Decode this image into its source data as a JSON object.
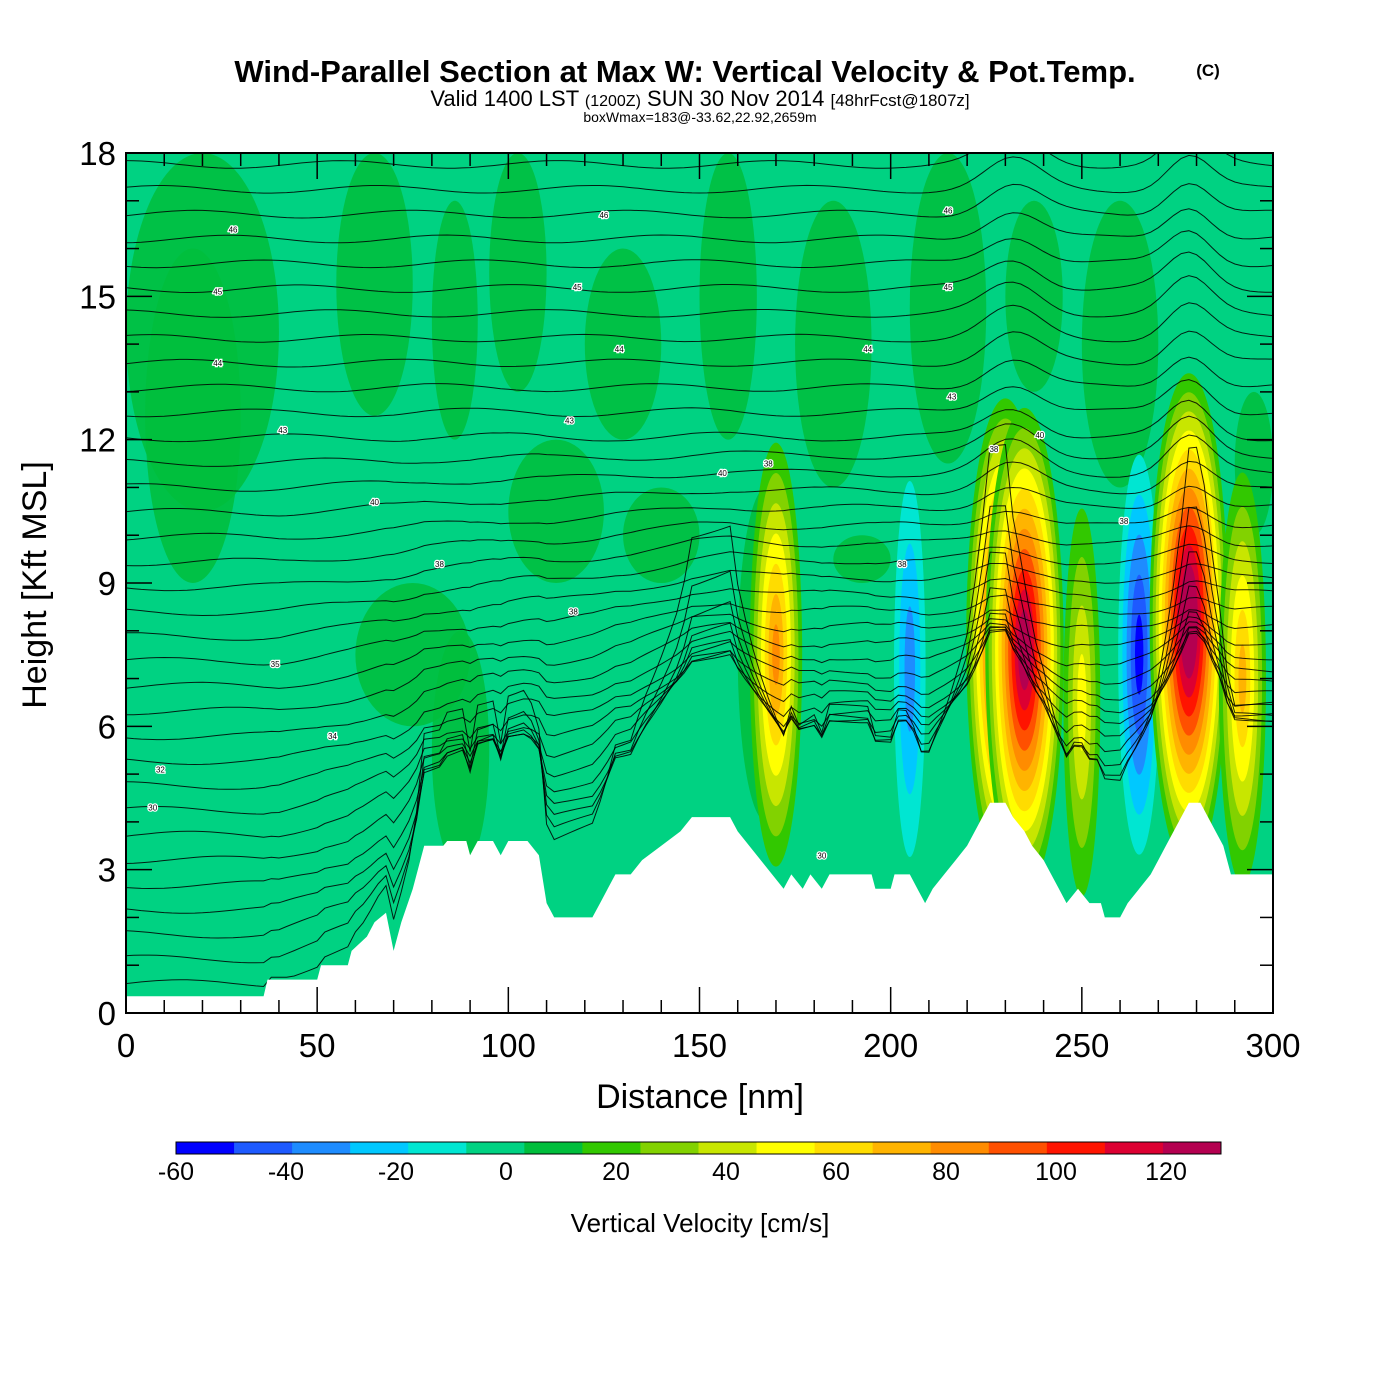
{
  "title": "Wind-Parallel Section at Max W: Vertical Velocity & Pot.Temp.",
  "copyright": "(C)",
  "subtitle": {
    "valid": "Valid 1400 LST",
    "utc": "(1200Z)",
    "date": "SUN 30 Nov 2014",
    "forecast": "[48hrFcst@1807z]"
  },
  "annotation": "boxWmax=183@-33.62,22.92,2659m",
  "colorbar_label": "Vertical Velocity [cm/s]",
  "colors": {
    "scale": [
      "#0000ff",
      "#1e5aff",
      "#1e8cff",
      "#00c8ff",
      "#00e6d2",
      "#00d282",
      "#00be3c",
      "#32c800",
      "#82d200",
      "#c8e600",
      "#ffff00",
      "#ffdc00",
      "#ffb400",
      "#ff8c00",
      "#ff5000",
      "#ff1400",
      "#dc0032",
      "#b40050"
    ]
  },
  "chart_data": {
    "type": "heatmap",
    "x": [
      0,
      50,
      100,
      150,
      200,
      250,
      300
    ],
    "y": [
      0,
      3,
      6,
      9,
      12,
      15,
      18
    ],
    "xlabel": "Distance [nm]",
    "ylabel": "Height [Kft MSL]",
    "xlim": [
      0,
      300
    ],
    "ylim": [
      0,
      18
    ],
    "colorbar": {
      "ticks": [
        -60,
        -40,
        -20,
        0,
        20,
        40,
        60,
        80,
        100,
        120
      ],
      "range": [
        -60,
        130
      ],
      "step": 10
    },
    "contour_labels": [
      {
        "text": "46",
        "x": 28,
        "y": 16.4
      },
      {
        "text": "45",
        "x": 24,
        "y": 15.1
      },
      {
        "text": "44",
        "x": 24,
        "y": 13.6
      },
      {
        "text": "43",
        "x": 41,
        "y": 12.2
      },
      {
        "text": "40",
        "x": 65,
        "y": 10.7
      },
      {
        "text": "38",
        "x": 82,
        "y": 9.4
      },
      {
        "text": "35",
        "x": 39,
        "y": 7.3
      },
      {
        "text": "34",
        "x": 54,
        "y": 5.8
      },
      {
        "text": "32",
        "x": 9,
        "y": 5.1
      },
      {
        "text": "30",
        "x": 7,
        "y": 4.3
      },
      {
        "text": "46",
        "x": 125,
        "y": 16.7
      },
      {
        "text": "45",
        "x": 118,
        "y": 15.2
      },
      {
        "text": "44",
        "x": 129,
        "y": 13.9
      },
      {
        "text": "43",
        "x": 116,
        "y": 12.4
      },
      {
        "text": "40",
        "x": 156,
        "y": 11.3
      },
      {
        "text": "38",
        "x": 117,
        "y": 8.4
      },
      {
        "text": "38",
        "x": 168,
        "y": 11.5
      },
      {
        "text": "46",
        "x": 215,
        "y": 16.8
      },
      {
        "text": "45",
        "x": 215,
        "y": 15.2
      },
      {
        "text": "44",
        "x": 194,
        "y": 13.9
      },
      {
        "text": "43",
        "x": 216,
        "y": 12.9
      },
      {
        "text": "38",
        "x": 203,
        "y": 9.4
      },
      {
        "text": "38",
        "x": 227,
        "y": 11.8
      },
      {
        "text": "40",
        "x": 239,
        "y": 12.1
      },
      {
        "text": "38",
        "x": 261,
        "y": 10.3
      },
      {
        "text": "30",
        "x": 182,
        "y": 3.3
      }
    ],
    "velocity_cells": [
      {
        "x": 170,
        "y": 7.5,
        "peak": 70
      },
      {
        "x": 205,
        "y": 7.2,
        "peak": -30
      },
      {
        "x": 230,
        "y": 7.8,
        "peak": 120
      },
      {
        "x": 235,
        "y": 7.6,
        "peak": 120
      },
      {
        "x": 250,
        "y": 6.5,
        "peak": 40
      },
      {
        "x": 265,
        "y": 7.5,
        "peak": -55
      },
      {
        "x": 278,
        "y": 8.2,
        "peak": 130
      },
      {
        "x": 292,
        "y": 7.0,
        "peak": 60
      }
    ],
    "terrain": [
      [
        0,
        0.35
      ],
      [
        36,
        0.35
      ],
      [
        37,
        0.7
      ],
      [
        50,
        0.7
      ],
      [
        51,
        1.0
      ],
      [
        58,
        1.0
      ],
      [
        59,
        1.3
      ],
      [
        63,
        1.6
      ],
      [
        65,
        1.9
      ],
      [
        68,
        2.1
      ],
      [
        70,
        1.3
      ],
      [
        72,
        1.9
      ],
      [
        75,
        2.6
      ],
      [
        78,
        3.5
      ],
      [
        83,
        3.5
      ],
      [
        84,
        3.6
      ],
      [
        89,
        3.6
      ],
      [
        90,
        3.3
      ],
      [
        92,
        3.6
      ],
      [
        96,
        3.6
      ],
      [
        98,
        3.3
      ],
      [
        100,
        3.6
      ],
      [
        105,
        3.6
      ],
      [
        108,
        3.3
      ],
      [
        110,
        2.3
      ],
      [
        112,
        2.0
      ],
      [
        122,
        2.0
      ],
      [
        124,
        2.3
      ],
      [
        126,
        2.6
      ],
      [
        128,
        2.9
      ],
      [
        132,
        2.9
      ],
      [
        135,
        3.2
      ],
      [
        140,
        3.5
      ],
      [
        145,
        3.8
      ],
      [
        148,
        4.1
      ],
      [
        158,
        4.1
      ],
      [
        160,
        3.8
      ],
      [
        163,
        3.5
      ],
      [
        166,
        3.2
      ],
      [
        169,
        2.9
      ],
      [
        172,
        2.6
      ],
      [
        174,
        2.9
      ],
      [
        177,
        2.6
      ],
      [
        179,
        2.9
      ],
      [
        182,
        2.6
      ],
      [
        184,
        2.9
      ],
      [
        195,
        2.9
      ],
      [
        196,
        2.6
      ],
      [
        200,
        2.6
      ],
      [
        201,
        2.9
      ],
      [
        205,
        2.9
      ],
      [
        207,
        2.6
      ],
      [
        209,
        2.3
      ],
      [
        211,
        2.6
      ],
      [
        214,
        2.9
      ],
      [
        217,
        3.2
      ],
      [
        220,
        3.5
      ],
      [
        222,
        3.8
      ],
      [
        224,
        4.1
      ],
      [
        226,
        4.4
      ],
      [
        230,
        4.4
      ],
      [
        232,
        4.1
      ],
      [
        235,
        3.8
      ],
      [
        237,
        3.5
      ],
      [
        240,
        3.2
      ],
      [
        242,
        2.9
      ],
      [
        244,
        2.6
      ],
      [
        246,
        2.3
      ],
      [
        249,
        2.6
      ],
      [
        252,
        2.3
      ],
      [
        255,
        2.3
      ],
      [
        256,
        2.0
      ],
      [
        260,
        2.0
      ],
      [
        262,
        2.3
      ],
      [
        265,
        2.6
      ],
      [
        268,
        2.9
      ],
      [
        270,
        3.2
      ],
      [
        272,
        3.5
      ],
      [
        274,
        3.8
      ],
      [
        276,
        4.1
      ],
      [
        278,
        4.4
      ],
      [
        281,
        4.4
      ],
      [
        283,
        4.1
      ],
      [
        285,
        3.8
      ],
      [
        287,
        3.5
      ],
      [
        288,
        3.2
      ],
      [
        289,
        2.9
      ],
      [
        300,
        2.9
      ]
    ]
  }
}
